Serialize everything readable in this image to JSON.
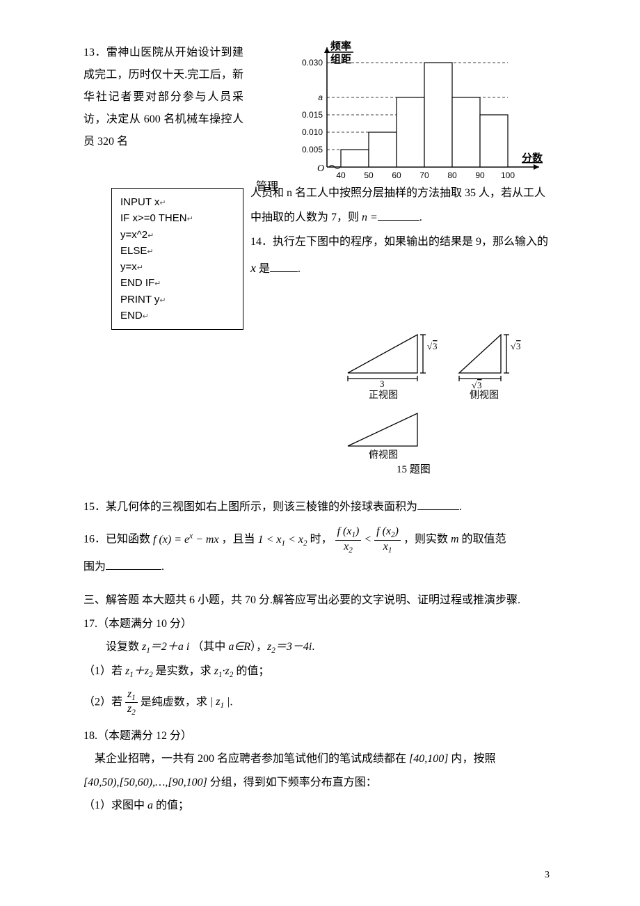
{
  "q13": {
    "left": "13．雷神山医院从开始设计到建成完工，历时仅十天.完工后，新华社记者要对部分参与人员采访，决定从 600 名机械车操控人员 320 名",
    "word_guanli": "管理",
    "right_line1": "人员和 n 名工人中按照分层抽样的方法抽取 35 人，若从工人",
    "right_line2_a": "中抽取的人数为 7，则 ",
    "right_line2_b": "n =",
    "right_line2_c": "."
  },
  "q14": {
    "line1": "14．执行左下图中的程序，如果输出的结果是 9，那么输入的",
    "line2_a": " 是",
    "line2_var": "x",
    "line2_b": "."
  },
  "code": {
    "l1": "INPUT x",
    "l2": "IF x>=0 THEN",
    "l3": "y=x^2",
    "l4": "ELSE",
    "l5": "y=x",
    "l6": "END IF",
    "l7": "PRINT y",
    "l8": "END"
  },
  "histogram": {
    "ylabel_top": "频率",
    "ylabel_bot": "组距",
    "xlabel": "分数",
    "yticks": [
      "0.005",
      "0.010",
      "0.015",
      "a",
      "0.030"
    ],
    "ytick_vals": [
      0.005,
      0.01,
      0.015,
      0.02,
      0.03
    ],
    "xticks": [
      "40",
      "50",
      "60",
      "70",
      "80",
      "90",
      "100"
    ],
    "bars": [
      {
        "x": 40,
        "h": 0.005
      },
      {
        "x": 50,
        "h": 0.01
      },
      {
        "x": 60,
        "h": 0.02
      },
      {
        "x": 70,
        "h": 0.03
      },
      {
        "x": 80,
        "h": 0.02
      },
      {
        "x": 90,
        "h": 0.015
      }
    ],
    "colors": {
      "axis": "#000000",
      "bar_stroke": "#000000",
      "bar_fill": "#ffffff",
      "dash": "#000000"
    }
  },
  "views": {
    "front": "正视图",
    "side": "侧视图",
    "top": "俯视图",
    "dim_h": "√3",
    "dim_w1": "3",
    "dim_w2": "√3"
  },
  "q15_caption": "15 题图",
  "q15": {
    "text_a": "15．某几何体的三视图如右上图所示，则该三棱锥的外接球表面积为",
    "text_b": "."
  },
  "q16": {
    "a": "16．已知函数 ",
    "fx": "f(x) = eˣ − mx",
    "b": "，且当 ",
    "cond": "1 < x₁ < x₂",
    "c": " 时，",
    "frac1_num": "f(x₁)",
    "frac1_den": "x₂",
    "lt": " < ",
    "frac2_num": "f(x₂)",
    "frac2_den": "x₁",
    "d": "，则实数 ",
    "m": "m",
    "e": " 的取值范",
    "f": "围为",
    "g": "."
  },
  "sec3_head": "三、解答题 本大题共 6 小题，共 70 分.解答应写出必要的文字说明、证明过程或推演步骤.",
  "q17": {
    "head": "17.（本题满分 10 分）",
    "body_a": "　　设复数 ",
    "z1": "z₁＝2＋ai",
    "body_b": " （其中 ",
    "aR": "a∈R",
    "body_c": "），",
    "z2": "z₂＝3－4i",
    "body_d": ".",
    "p1_a": "（1）若 ",
    "p1_b": "z₁＋z₂",
    "p1_c": " 是实数，求 ",
    "p1_d": "z₁·z₂",
    "p1_e": " 的值；",
    "p2_a": "（2）若 ",
    "p2_frac_num": "z₁",
    "p2_frac_den": "z₂",
    "p2_b": " 是纯虚数，求 ",
    "p2_c": "|z₁|",
    "p2_d": "."
  },
  "q18": {
    "head": "18.（本题满分 12 分）",
    "body_a": "　某企业招聘，一共有 200 名应聘者参加笔试他们的笔试成绩都在 ",
    "int1": "[40,100]",
    "body_b": " 内，按照",
    "int2": "[40,50),[50,60),…,[90,100]",
    "body_c": " 分组，得到如下频率分布直方图：",
    "p1_a": "（1）求图中 ",
    "p1_var": "a",
    "p1_b": " 的值；"
  },
  "page": "3"
}
